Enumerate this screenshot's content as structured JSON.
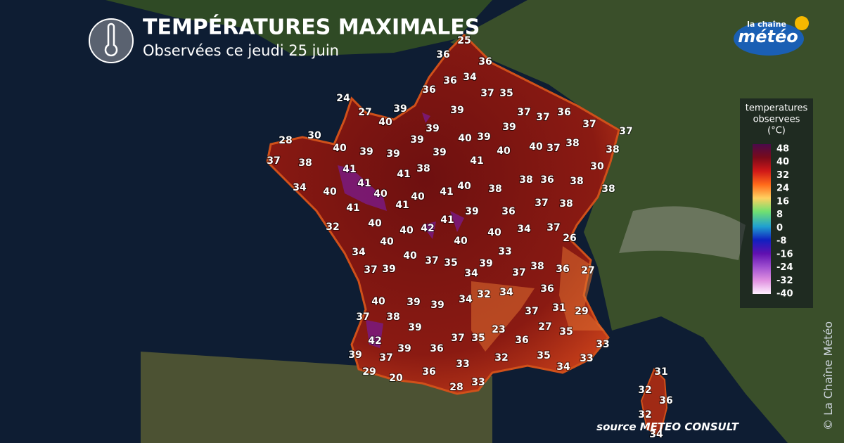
{
  "header": {
    "title": "TEMPÉRATURES MAXIMALES",
    "subtitle": "Observées ce jeudi 25 juin"
  },
  "logo": {
    "top": "la chaîne",
    "main": "météo"
  },
  "legend": {
    "title": [
      "temperatures",
      "observees",
      "(°C)"
    ],
    "ticks": [
      48,
      40,
      32,
      24,
      16,
      8,
      0,
      -8,
      -16,
      -24,
      -32,
      -40
    ]
  },
  "stations": [
    25,
    36,
    36,
    36,
    34,
    36,
    37,
    35,
    24,
    27,
    39,
    39,
    37,
    37,
    36,
    40,
    39,
    39,
    37,
    37,
    28,
    30,
    39,
    40,
    39,
    40,
    39,
    39,
    39,
    40,
    40,
    37,
    38,
    38,
    37,
    38,
    41,
    30,
    41,
    41,
    38,
    38,
    36,
    38,
    38,
    34,
    40,
    41,
    40,
    40,
    41,
    40,
    38,
    41,
    41,
    39,
    36,
    37,
    38,
    32,
    40,
    40,
    42,
    41,
    40,
    34,
    37,
    26,
    40,
    40,
    34,
    40,
    37,
    35,
    33,
    37,
    39,
    34,
    39,
    37,
    38,
    36,
    27,
    32,
    34,
    36,
    40,
    39,
    39,
    34,
    38,
    37,
    31,
    29,
    37,
    39,
    23,
    27,
    35,
    42,
    37,
    35,
    36,
    39,
    36,
    33,
    39,
    37,
    33,
    32,
    35,
    33,
    29,
    36,
    34,
    20,
    28,
    33,
    31,
    32,
    36,
    32,
    34
  ],
  "source": "source METEO CONSULT",
  "copyright": "© La Chaîne Météo"
}
